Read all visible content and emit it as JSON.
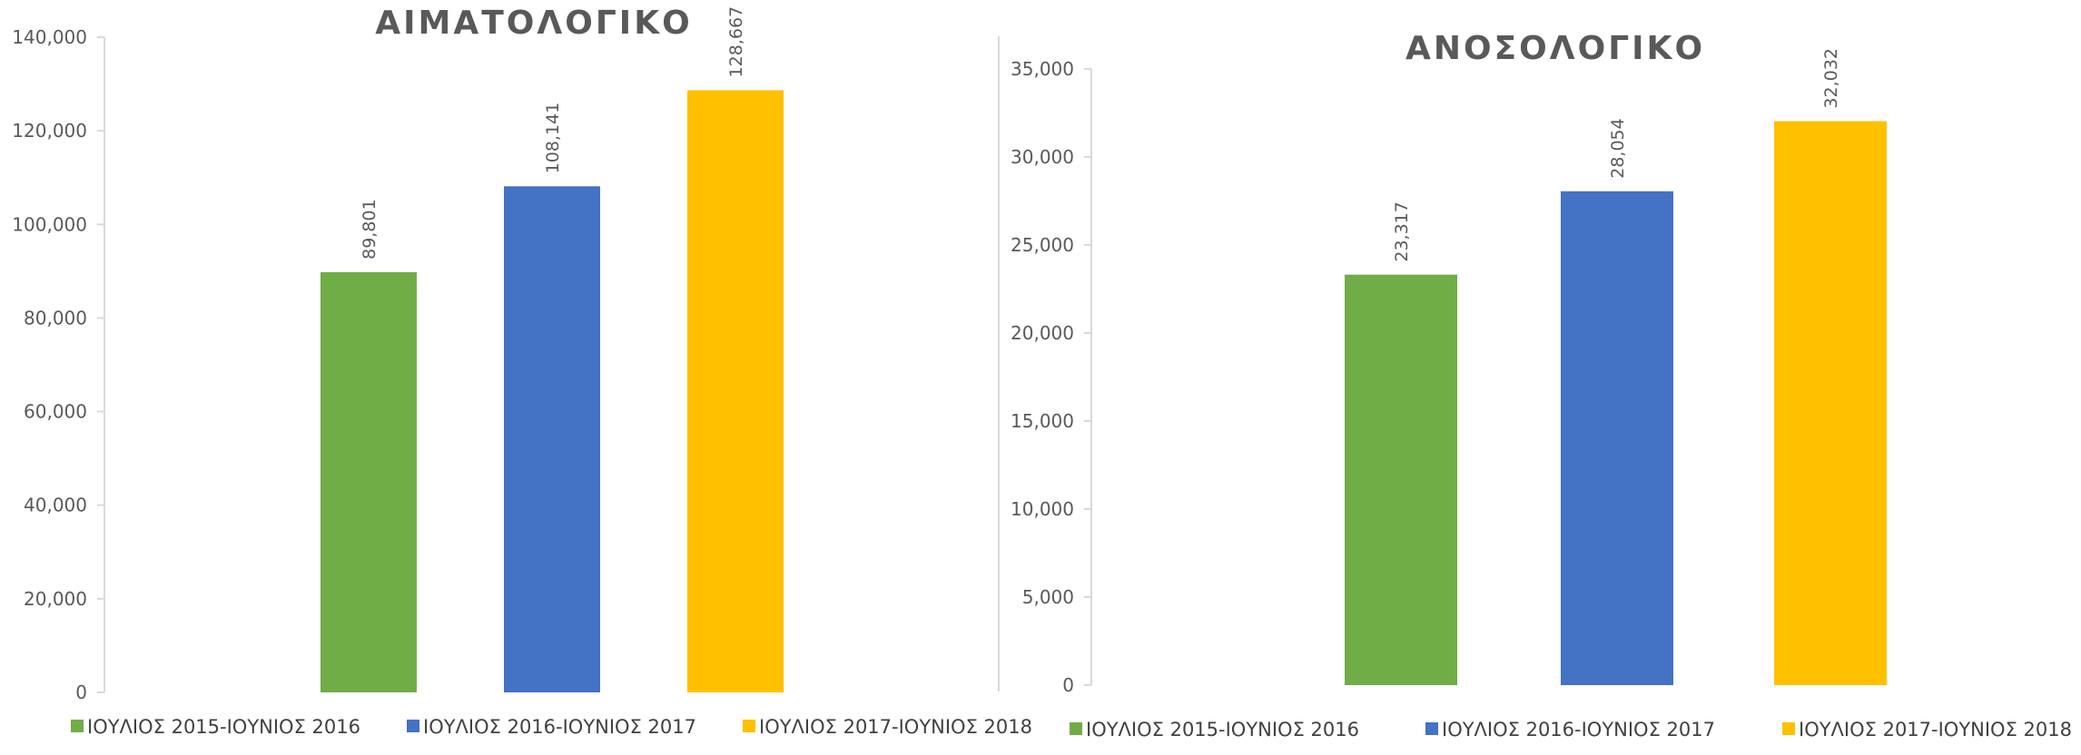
{
  "chart_data": [
    {
      "type": "bar",
      "title": "ΑΙΜΑΤΟΛΟΓΙΚΟ",
      "xlabel": "",
      "ylabel": "",
      "ylim": [
        0,
        140000
      ],
      "ytick_step": 20000,
      "ytick_labels": [
        "0",
        "20,000",
        "40,000",
        "60,000",
        "80,000",
        "100,000",
        "120,000",
        "140,000"
      ],
      "grid": false,
      "legend_position": "bottom",
      "series": [
        {
          "name": "ΙΟΥΛΙΟΣ 2015-ΙΟΥΝΙΟΣ 2016",
          "value": 89801,
          "label": "89,801",
          "color": "#70AD47"
        },
        {
          "name": "ΙΟΥΛΙΟΣ 2016-ΙΟΥΝΙΟΣ 2017",
          "value": 108141,
          "label": "108,141",
          "color": "#4472C4"
        },
        {
          "name": "ΙΟΥΛΙΟΣ 2017-ΙΟΥΝΙΟΣ 2018",
          "value": 128667,
          "label": "128,667",
          "color": "#FFC000"
        }
      ]
    },
    {
      "type": "bar",
      "title": "ΑΝΟΣΟΛΟΓΙΚΟ",
      "xlabel": "",
      "ylabel": "",
      "ylim": [
        0,
        35000
      ],
      "ytick_step": 5000,
      "ytick_labels": [
        "0",
        "5,000",
        "10,000",
        "15,000",
        "20,000",
        "25,000",
        "30,000",
        "35,000"
      ],
      "grid": false,
      "legend_position": "bottom",
      "series": [
        {
          "name": "ΙΟΥΛΙΟΣ 2015-ΙΟΥΝΙΟΣ 2016",
          "value": 23317,
          "label": "23,317",
          "color": "#70AD47"
        },
        {
          "name": "ΙΟΥΛΙΟΣ 2016-ΙΟΥΝΙΟΣ 2017",
          "value": 28054,
          "label": "28,054",
          "color": "#4472C4"
        },
        {
          "name": "ΙΟΥΛΙΟΣ 2017-ΙΟΥΝΙΟΣ 2018",
          "value": 32032,
          "label": "32,032",
          "color": "#FFC000"
        }
      ]
    }
  ],
  "colors": {
    "axis": "#D9D9D9",
    "text": "#595959",
    "legend_text": "#404040"
  }
}
